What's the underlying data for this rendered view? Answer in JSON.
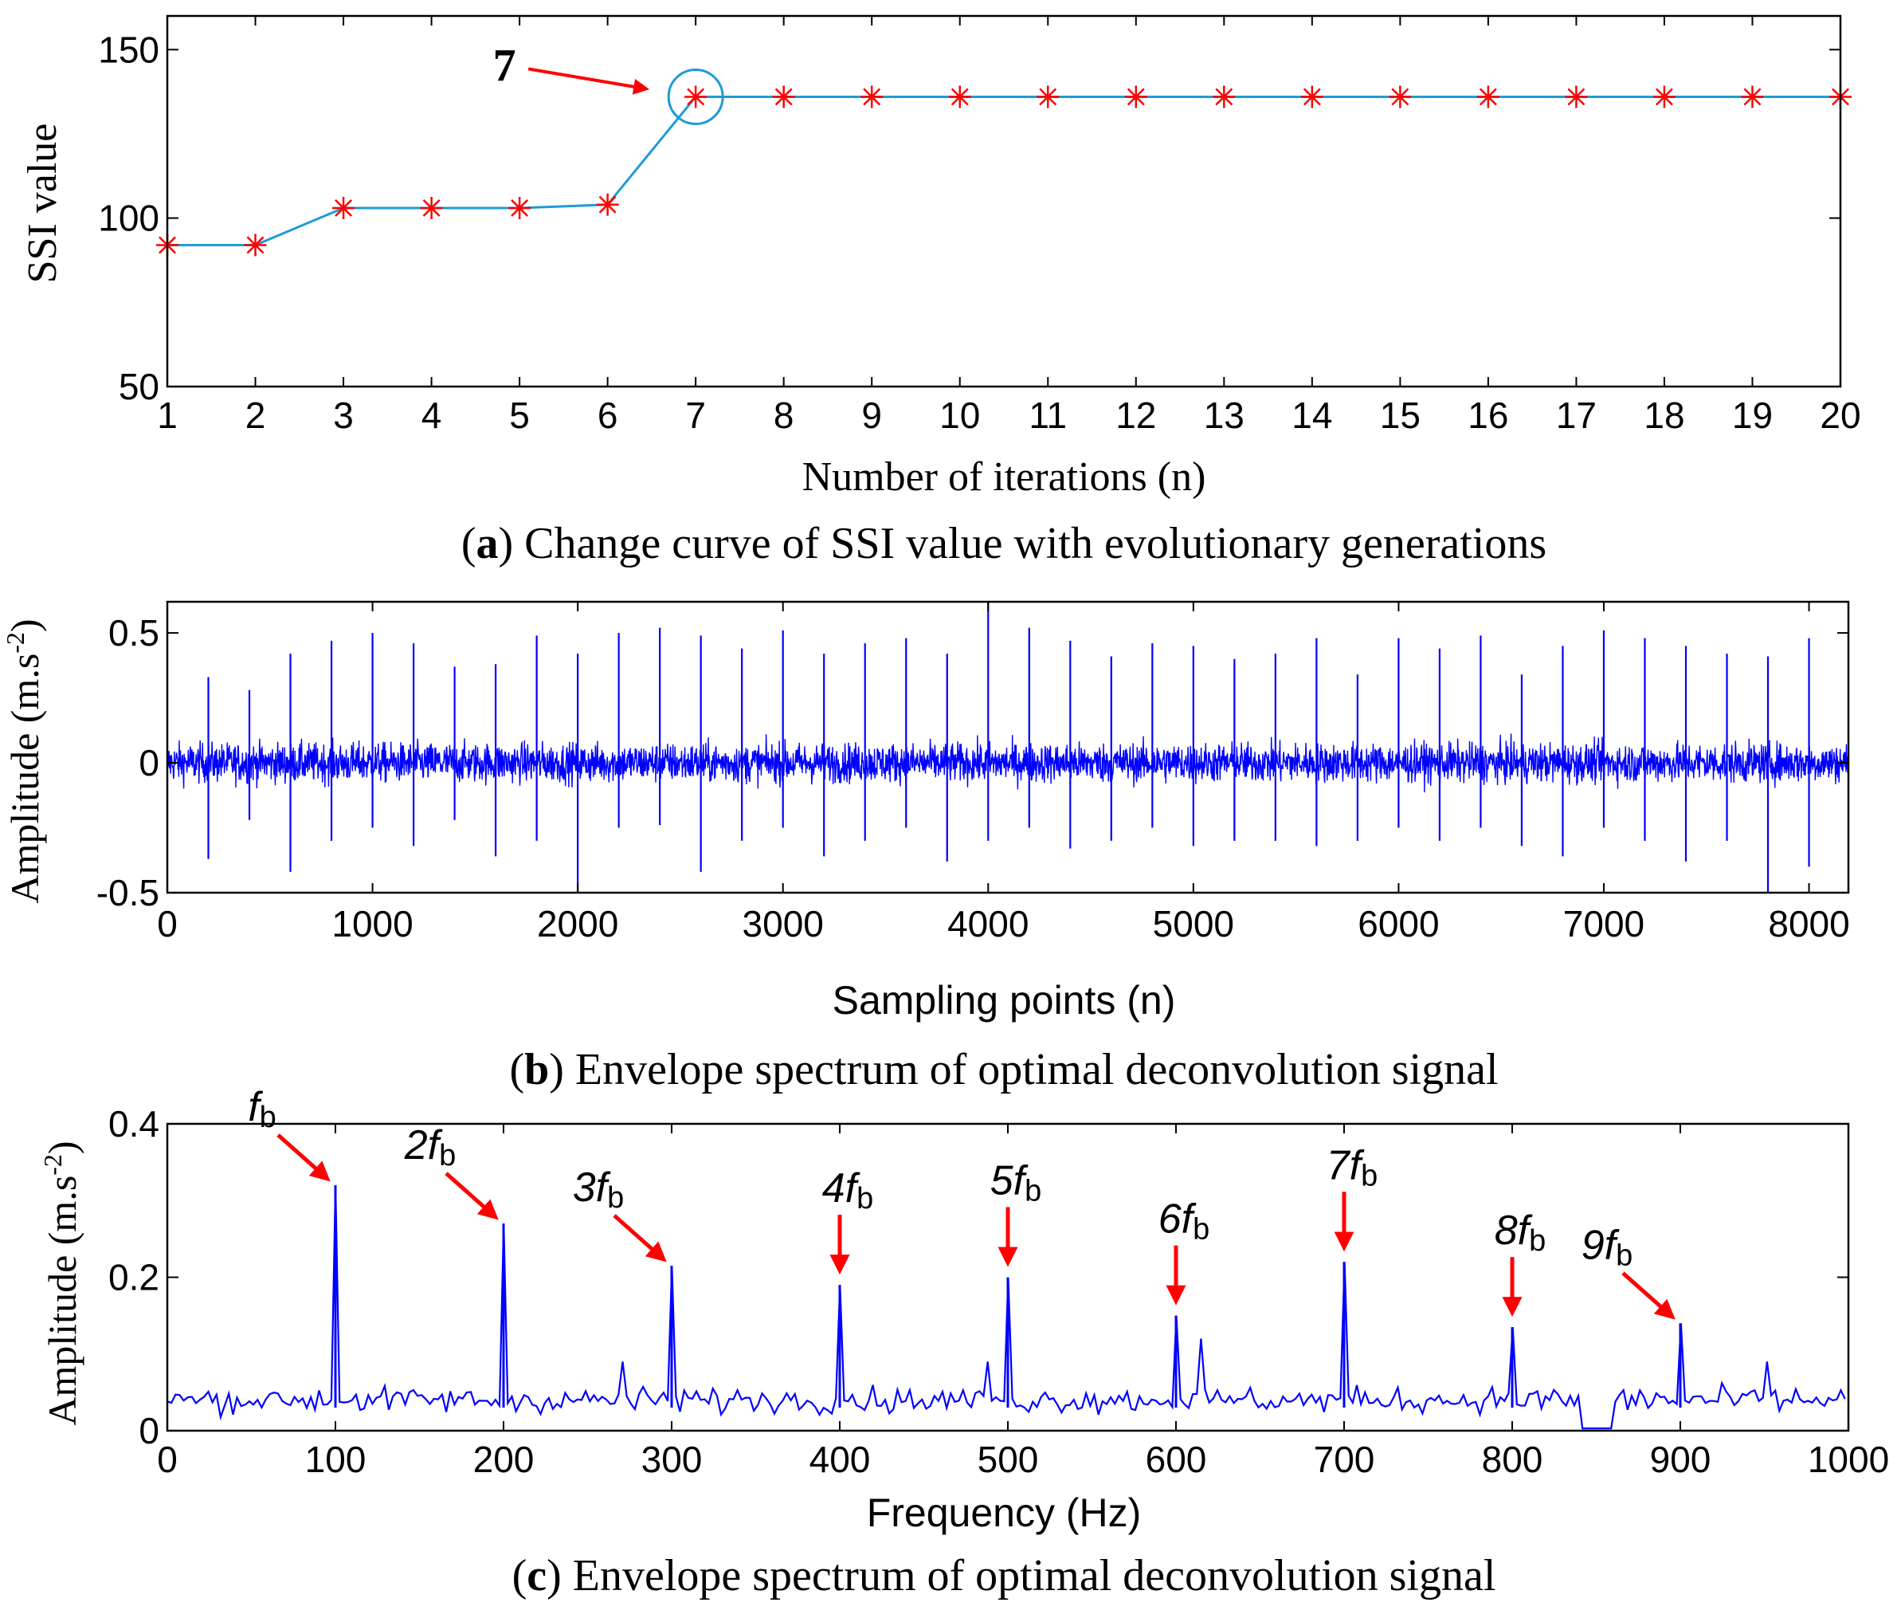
{
  "colors": {
    "ssi_line": "#1f9bd7",
    "marker": "#ff0000",
    "signal": "#0000ff",
    "arrow": "#ff0000",
    "frame": "#000000"
  },
  "chart_data": [
    {
      "id": "a",
      "type": "line",
      "caption_letter": "a",
      "caption_text": " Change curve of SSI value with evolutionary generations",
      "caption_open": "(",
      "caption_close": ")",
      "xlabel": "Number of iterations (n)",
      "ylabel": "SSI value",
      "x": [
        1,
        2,
        3,
        4,
        5,
        6,
        7,
        8,
        9,
        10,
        11,
        12,
        13,
        14,
        15,
        16,
        17,
        18,
        19,
        20
      ],
      "y": [
        92,
        92,
        103,
        103,
        103,
        104,
        136,
        136,
        136,
        136,
        136,
        136,
        136,
        136,
        136,
        136,
        136,
        136,
        136,
        136
      ],
      "xlim": [
        1,
        20
      ],
      "ylim": [
        50,
        160
      ],
      "xticks": [
        1,
        2,
        3,
        4,
        5,
        6,
        7,
        8,
        9,
        10,
        11,
        12,
        13,
        14,
        15,
        16,
        17,
        18,
        19,
        20
      ],
      "yticks": [
        50,
        100,
        150
      ],
      "marker": "asterisk",
      "annotation": {
        "label": "7",
        "x": 7,
        "y": 136
      }
    },
    {
      "id": "b",
      "type": "line",
      "caption_letter": "b",
      "caption_text": " Envelope spectrum of optimal deconvolution signal",
      "caption_open": "(",
      "caption_close": ")",
      "xlabel": "Sampling points (n)",
      "ylabel": "Amplitude (m.s",
      "ylabel_sup": "-2",
      "ylabel_end": ")",
      "xlim": [
        0,
        8192
      ],
      "ylim": [
        -0.5,
        0.62
      ],
      "xticks": [
        0,
        1000,
        2000,
        3000,
        4000,
        5000,
        6000,
        7000,
        8000
      ],
      "yticks": [
        -0.5,
        0,
        0.5
      ],
      "ytick_labels": [
        "-0.5",
        "0",
        "0.5"
      ],
      "n_samples": 8192,
      "noise_amplitude": 0.13,
      "impulse_period_samples": 200,
      "impulses": [
        {
          "x": 200,
          "up": 0.33,
          "down": -0.37
        },
        {
          "x": 400,
          "up": 0.28,
          "down": -0.22
        },
        {
          "x": 600,
          "up": 0.42,
          "down": -0.42
        },
        {
          "x": 800,
          "up": 0.47,
          "down": -0.3
        },
        {
          "x": 1000,
          "up": 0.5,
          "down": -0.25
        },
        {
          "x": 1200,
          "up": 0.46,
          "down": -0.32
        },
        {
          "x": 1400,
          "up": 0.37,
          "down": -0.22
        },
        {
          "x": 1600,
          "up": 0.38,
          "down": -0.36
        },
        {
          "x": 1800,
          "up": 0.49,
          "down": -0.3
        },
        {
          "x": 2000,
          "up": 0.42,
          "down": -0.5
        },
        {
          "x": 2200,
          "up": 0.5,
          "down": -0.25
        },
        {
          "x": 2400,
          "up": 0.52,
          "down": -0.24
        },
        {
          "x": 2600,
          "up": 0.49,
          "down": -0.42
        },
        {
          "x": 2800,
          "up": 0.44,
          "down": -0.3
        },
        {
          "x": 3000,
          "up": 0.51,
          "down": -0.25
        },
        {
          "x": 3200,
          "up": 0.42,
          "down": -0.36
        },
        {
          "x": 3400,
          "up": 0.46,
          "down": -0.3
        },
        {
          "x": 3600,
          "up": 0.48,
          "down": -0.25
        },
        {
          "x": 3800,
          "up": 0.42,
          "down": -0.38
        },
        {
          "x": 4000,
          "up": 0.62,
          "down": -0.3
        },
        {
          "x": 4200,
          "up": 0.52,
          "down": -0.25
        },
        {
          "x": 4400,
          "up": 0.47,
          "down": -0.33
        },
        {
          "x": 4600,
          "up": 0.41,
          "down": -0.3
        },
        {
          "x": 4800,
          "up": 0.46,
          "down": -0.25
        },
        {
          "x": 5000,
          "up": 0.45,
          "down": -0.32
        },
        {
          "x": 5200,
          "up": 0.4,
          "down": -0.3
        },
        {
          "x": 5400,
          "up": 0.42,
          "down": -0.3
        },
        {
          "x": 5600,
          "up": 0.48,
          "down": -0.32
        },
        {
          "x": 5800,
          "up": 0.34,
          "down": -0.3
        },
        {
          "x": 6000,
          "up": 0.48,
          "down": -0.25
        },
        {
          "x": 6200,
          "up": 0.44,
          "down": -0.3
        },
        {
          "x": 6400,
          "up": 0.49,
          "down": -0.25
        },
        {
          "x": 6600,
          "up": 0.34,
          "down": -0.32
        },
        {
          "x": 6800,
          "up": 0.45,
          "down": -0.36
        },
        {
          "x": 7000,
          "up": 0.51,
          "down": -0.25
        },
        {
          "x": 7200,
          "up": 0.48,
          "down": -0.3
        },
        {
          "x": 7400,
          "up": 0.45,
          "down": -0.38
        },
        {
          "x": 7600,
          "up": 0.42,
          "down": -0.3
        },
        {
          "x": 7800,
          "up": 0.41,
          "down": -0.5
        },
        {
          "x": 8000,
          "up": 0.48,
          "down": -0.4
        }
      ]
    },
    {
      "id": "c",
      "type": "line",
      "caption_letter": "c",
      "caption_text": " Envelope spectrum of optimal deconvolution signal",
      "caption_open": "(",
      "caption_close": ")",
      "xlabel": "Frequency (Hz)",
      "ylabel": "Amplitude (m.s",
      "ylabel_sup": "-2",
      "ylabel_end": ")",
      "xlim": [
        0,
        1000
      ],
      "ylim": [
        0,
        0.4
      ],
      "xticks": [
        0,
        100,
        200,
        300,
        400,
        500,
        600,
        700,
        800,
        900,
        1000
      ],
      "yticks": [
        0,
        0.2,
        0.4
      ],
      "ytick_labels": [
        "0",
        "0.2",
        "0.4"
      ],
      "baseline_level": 0.04,
      "peaks": [
        {
          "f": 100,
          "amp": 0.32,
          "label": "f",
          "mult": "",
          "sub": "b",
          "arrow": "diag"
        },
        {
          "f": 200,
          "amp": 0.27,
          "label": "f",
          "mult": "2",
          "sub": "b",
          "arrow": "diag"
        },
        {
          "f": 300,
          "amp": 0.215,
          "label": "f",
          "mult": "3",
          "sub": "b",
          "arrow": "diag"
        },
        {
          "f": 400,
          "amp": 0.19,
          "label": "f",
          "mult": "4",
          "sub": "b",
          "arrow": "down"
        },
        {
          "f": 500,
          "amp": 0.2,
          "label": "f",
          "mult": "5",
          "sub": "b",
          "arrow": "down"
        },
        {
          "f": 600,
          "amp": 0.15,
          "label": "f",
          "mult": "6",
          "sub": "b",
          "arrow": "down"
        },
        {
          "f": 700,
          "amp": 0.22,
          "label": "f",
          "mult": "7",
          "sub": "b",
          "arrow": "down"
        },
        {
          "f": 800,
          "amp": 0.135,
          "label": "f",
          "mult": "8",
          "sub": "b",
          "arrow": "down"
        },
        {
          "f": 900,
          "amp": 0.14,
          "label": "f",
          "mult": "9",
          "sub": "b",
          "arrow": "diag"
        }
      ]
    }
  ]
}
